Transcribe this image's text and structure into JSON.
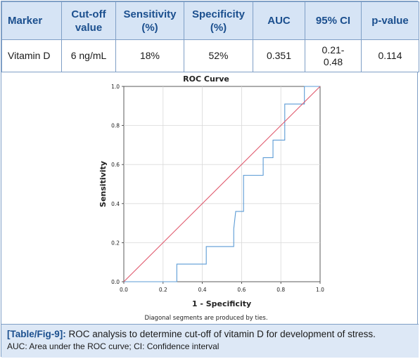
{
  "table": {
    "headers": [
      "Marker",
      "Cut-off value",
      "Sensitivity (%)",
      "Specificity (%)",
      "AUC",
      "95% CI",
      "p-value"
    ],
    "row": {
      "marker": "Vitamin D",
      "cutoff": "6 ng/mL",
      "sensitivity": "18%",
      "specificity": "52%",
      "auc": "0.351",
      "ci": "0.21-0.48",
      "p": "0.114"
    }
  },
  "chart_data": {
    "type": "line",
    "title": "ROC Curve",
    "xlabel": "1 - Specificity",
    "ylabel": "Sensitivity",
    "xlim": [
      0,
      1
    ],
    "ylim": [
      0,
      1
    ],
    "xticks": [
      "0.0",
      "0.2",
      "0.4",
      "0.6",
      "0.8",
      "1.0"
    ],
    "yticks": [
      "0.0",
      "0.2",
      "0.4",
      "0.6",
      "0.8",
      "1.0"
    ],
    "grid": true,
    "footnote": "Diagonal segments are produced by ties.",
    "series": [
      {
        "color": "#5b9bd5",
        "points": [
          [
            0.0,
            0.0
          ],
          [
            0.27,
            0.0
          ],
          [
            0.27,
            0.09
          ],
          [
            0.42,
            0.09
          ],
          [
            0.42,
            0.18
          ],
          [
            0.56,
            0.18
          ],
          [
            0.56,
            0.27
          ],
          [
            0.57,
            0.36
          ],
          [
            0.61,
            0.36
          ],
          [
            0.61,
            0.545
          ],
          [
            0.71,
            0.545
          ],
          [
            0.71,
            0.635
          ],
          [
            0.76,
            0.635
          ],
          [
            0.76,
            0.725
          ],
          [
            0.82,
            0.725
          ],
          [
            0.82,
            0.91
          ],
          [
            0.92,
            0.91
          ],
          [
            0.92,
            1.0
          ],
          [
            1.0,
            1.0
          ]
        ]
      },
      {
        "color": "#e05a6e",
        "points": [
          [
            0,
            0
          ],
          [
            1,
            1
          ]
        ]
      }
    ]
  },
  "caption": {
    "label": "[Table/Fig-9]:",
    "text": " ROC analysis to determine cut-off of vitamin D for development of stress.",
    "note": "AUC: Area under the ROC curve; CI: Confidence interval"
  }
}
